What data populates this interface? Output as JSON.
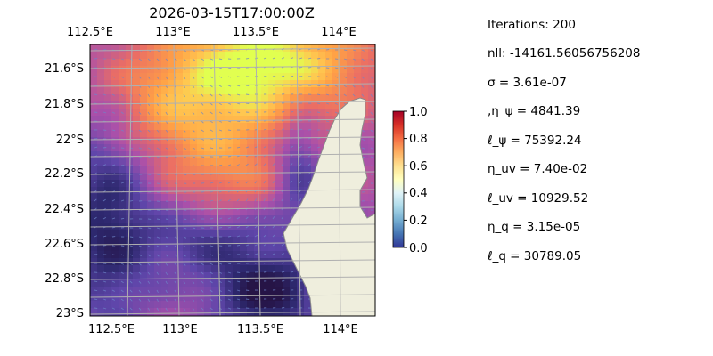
{
  "title": "2026-03-15T17:00:00Z",
  "map": {
    "lon_ticks": [
      "112.5°E",
      "113°E",
      "113.5°E",
      "114°E"
    ],
    "lat_ticks": [
      "21.6°S",
      "21.8°S",
      "22°S",
      "22.2°S",
      "22.4°S",
      "22.6°S",
      "22.8°S",
      "23°S"
    ],
    "colors": {
      "ocean": "#9bb8dd",
      "land": "#efeedd",
      "coast": "#8a8a8a",
      "grid": "#b0b0b0"
    }
  },
  "colorbar": {
    "ticks": [
      "0.0",
      "0.2",
      "0.4",
      "0.6",
      "0.8",
      "1.0"
    ],
    "range": [
      0,
      1
    ],
    "colormap": "RdYlBu_r"
  },
  "stats": [
    "Iterations: 200",
    "nll: -14161.56056756208",
    "σ = 3.61e-07",
    ",η_ψ = 4841.39",
    "ℓ_ψ = 75392.24",
    "η_uv = 7.40e-02",
    "ℓ_uv = 10929.52",
    "η_q = 3.15e-05",
    "ℓ_q = 30789.05"
  ]
}
